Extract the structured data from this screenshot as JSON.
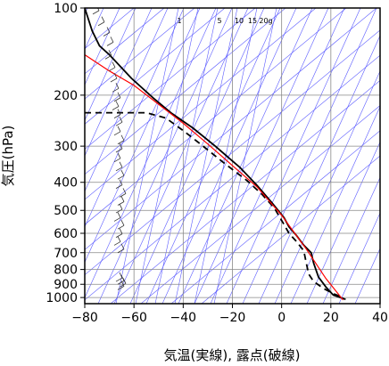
{
  "chart_data": {
    "type": "line",
    "title": "",
    "xlabel": "気温(実線), 露点(破線)",
    "ylabel": "気圧(hPa)",
    "xlim": [
      -80,
      40
    ],
    "ylim": [
      1050,
      100
    ],
    "y_scale": "log",
    "x_ticks": [
      -80,
      -60,
      -40,
      -20,
      0,
      20,
      40
    ],
    "x_tick_labels": [
      "−80",
      "−60",
      "−40",
      "−20",
      "0",
      "20",
      "40"
    ],
    "y_ticks": [
      100,
      200,
      300,
      400,
      500,
      600,
      700,
      800,
      900,
      1000
    ],
    "y_tick_labels": [
      "100",
      "200",
      "300",
      "400",
      "500",
      "600",
      "700",
      "800",
      "900",
      "1000"
    ],
    "grid": true,
    "mixing_ratio_labels": [
      "1",
      "5",
      "10",
      "15",
      "20g"
    ],
    "series": [
      {
        "style": "solid",
        "color": "#000000",
        "points": [
          [
            -80,
            100
          ],
          [
            -77,
            120
          ],
          [
            -74,
            135
          ],
          [
            -70,
            145
          ],
          [
            -61,
            175
          ],
          [
            -52,
            205
          ],
          [
            -45,
            230
          ],
          [
            -36,
            260
          ],
          [
            -27,
            300
          ],
          [
            -17,
            355
          ],
          [
            -10,
            410
          ],
          [
            -4,
            470
          ],
          [
            1,
            530
          ],
          [
            3,
            570
          ],
          [
            6,
            610
          ],
          [
            9,
            660
          ],
          [
            12,
            700
          ],
          [
            13,
            760
          ],
          [
            15,
            850
          ],
          [
            18,
            920
          ],
          [
            21,
            980
          ],
          [
            26,
            1015
          ]
        ]
      },
      {
        "style": "dashed",
        "color": "#000000",
        "points": [
          [
            -80,
            230
          ],
          [
            -55,
            230
          ],
          [
            -47,
            240
          ],
          [
            -40,
            265
          ],
          [
            -33,
            295
          ],
          [
            -23,
            345
          ],
          [
            -14,
            395
          ],
          [
            -8,
            440
          ],
          [
            -3,
            490
          ],
          [
            1,
            560
          ],
          [
            3,
            600
          ],
          [
            6,
            640
          ],
          [
            9,
            690
          ],
          [
            10,
            760
          ],
          [
            11,
            830
          ],
          [
            13,
            880
          ],
          [
            17,
            930
          ],
          [
            21,
            970
          ],
          [
            25,
            1000
          ]
        ]
      },
      {
        "style": "solid",
        "color": "#ff0000",
        "points": [
          [
            -80,
            145
          ],
          [
            -70,
            165
          ],
          [
            -60,
            185
          ],
          [
            -50,
            215
          ],
          [
            -40,
            250
          ],
          [
            -30,
            295
          ],
          [
            -20,
            350
          ],
          [
            -10,
            415
          ],
          [
            0,
            520
          ],
          [
            10,
            680
          ],
          [
            18,
            860
          ],
          [
            25,
            1020
          ]
        ]
      }
    ],
    "wind_barb_pressures": [
      105,
      115,
      125,
      135,
      150,
      165,
      180,
      195,
      210,
      225,
      240,
      255,
      275,
      295,
      315,
      340,
      365,
      390,
      420,
      450,
      480,
      510,
      545,
      580,
      620,
      660,
      700,
      880,
      900,
      920,
      940
    ]
  }
}
